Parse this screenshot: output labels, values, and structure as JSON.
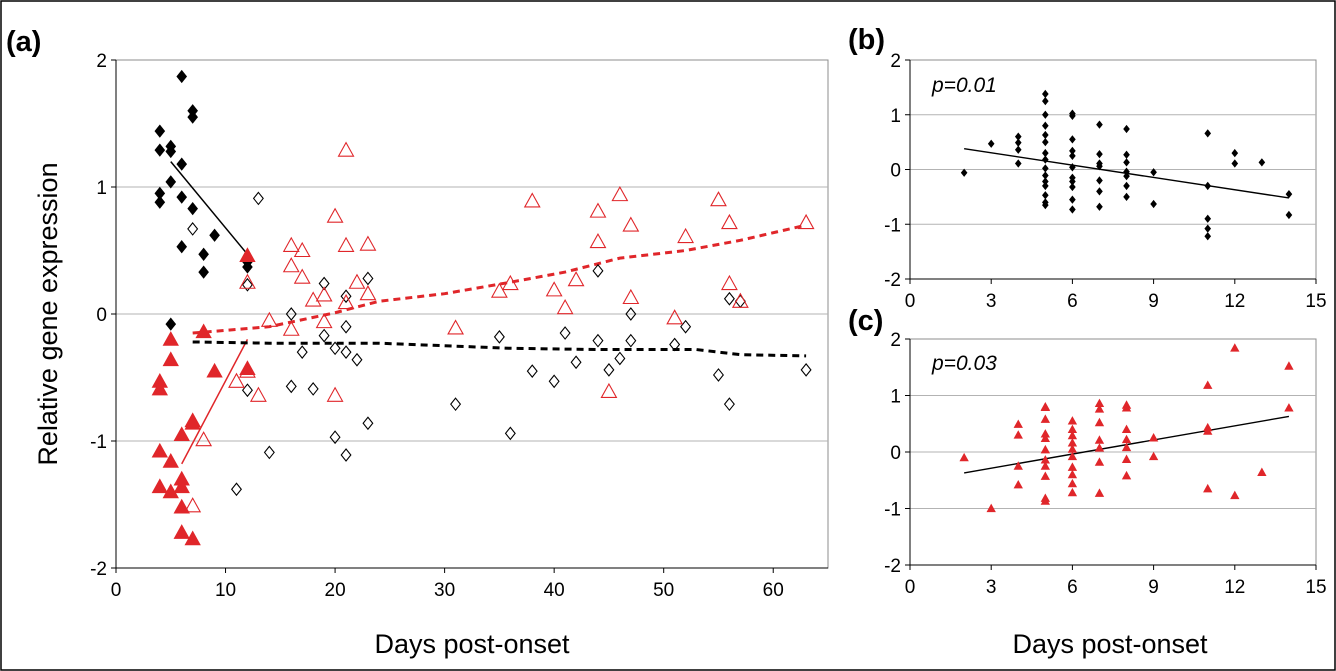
{
  "figure": {
    "border_color": "#000000",
    "grid_color": "#b3b3b3",
    "black": "#000000",
    "red": "#e0262a"
  },
  "chart_data": [
    {
      "panel": "(a)",
      "type": "scatter",
      "title": "",
      "xlabel": "Days post-onset",
      "ylabel": "Relative gene expression",
      "xlim": [
        0,
        65
      ],
      "ylim": [
        -2,
        2
      ],
      "xticks": [
        0,
        10,
        20,
        30,
        40,
        50,
        60
      ],
      "yticks": [
        -2,
        -1,
        0,
        1,
        2
      ],
      "grid": "horizontal",
      "legend": "none",
      "series": [
        {
          "marker": "diamond-filled",
          "color": "#000000",
          "points": [
            [
              4,
              1.44
            ],
            [
              4,
              1.29
            ],
            [
              4,
              0.95
            ],
            [
              4,
              0.88
            ],
            [
              5,
              1.32
            ],
            [
              5,
              1.28
            ],
            [
              5,
              1.04
            ],
            [
              6,
              1.87
            ],
            [
              6,
              1.18
            ],
            [
              6,
              0.92
            ],
            [
              6,
              0.53
            ],
            [
              7,
              1.6
            ],
            [
              7,
              1.55
            ],
            [
              7,
              0.83
            ],
            [
              8,
              0.47
            ],
            [
              8,
              0.33
            ],
            [
              9,
              0.62
            ],
            [
              12,
              0.41
            ],
            [
              12,
              0.37
            ],
            [
              5,
              -0.08
            ]
          ]
        },
        {
          "marker": "diamond-open",
          "color": "#000000",
          "points": [
            [
              7,
              0.67
            ],
            [
              11,
              -1.38
            ],
            [
              12,
              0.23
            ],
            [
              12,
              -0.6
            ],
            [
              13,
              0.91
            ],
            [
              14,
              -1.09
            ],
            [
              16,
              -0.57
            ],
            [
              16,
              0
            ],
            [
              17,
              -0.3
            ],
            [
              18,
              -0.59
            ],
            [
              19,
              0.24
            ],
            [
              19,
              -0.17
            ],
            [
              20,
              -0.27
            ],
            [
              20,
              -0.97
            ],
            [
              21,
              0.14
            ],
            [
              21,
              -0.1
            ],
            [
              21,
              -0.3
            ],
            [
              21,
              -1.11
            ],
            [
              22,
              -0.36
            ],
            [
              23,
              0.28
            ],
            [
              23,
              -0.86
            ],
            [
              31,
              -0.71
            ],
            [
              35,
              -0.18
            ],
            [
              36,
              -0.94
            ],
            [
              38,
              -0.45
            ],
            [
              40,
              -0.53
            ],
            [
              41,
              -0.15
            ],
            [
              42,
              -0.38
            ],
            [
              44,
              0.34
            ],
            [
              44,
              -0.21
            ],
            [
              45,
              -0.44
            ],
            [
              46,
              -0.35
            ],
            [
              47,
              0
            ],
            [
              47,
              -0.21
            ],
            [
              51,
              -0.24
            ],
            [
              52,
              -0.1
            ],
            [
              55,
              -0.48
            ],
            [
              56,
              0.12
            ],
            [
              56,
              -0.71
            ],
            [
              57,
              0.1
            ],
            [
              63,
              -0.44
            ]
          ]
        },
        {
          "marker": "triangle-filled",
          "color": "#e0262a",
          "points": [
            [
              4,
              -0.53
            ],
            [
              4,
              -0.59
            ],
            [
              4,
              -1.08
            ],
            [
              4,
              -1.36
            ],
            [
              5,
              -0.2
            ],
            [
              5,
              -0.36
            ],
            [
              5,
              -1.16
            ],
            [
              5,
              -1.4
            ],
            [
              6,
              -0.95
            ],
            [
              6,
              -1.3
            ],
            [
              6,
              -1.36
            ],
            [
              6,
              -1.52
            ],
            [
              6,
              -1.72
            ],
            [
              7,
              -0.84
            ],
            [
              7,
              -0.86
            ],
            [
              7,
              -1.77
            ],
            [
              8,
              -0.14
            ],
            [
              9,
              -0.45
            ],
            [
              12,
              0.46
            ],
            [
              12,
              -0.43
            ]
          ]
        },
        {
          "marker": "triangle-open",
          "color": "#e0262a",
          "points": [
            [
              7,
              -1.51
            ],
            [
              8,
              -0.99
            ],
            [
              11,
              -0.53
            ],
            [
              12,
              0.25
            ],
            [
              12,
              -0.45
            ],
            [
              13,
              -0.64
            ],
            [
              14,
              -0.05
            ],
            [
              16,
              0.54
            ],
            [
              16,
              0.38
            ],
            [
              16,
              -0.12
            ],
            [
              17,
              0.5
            ],
            [
              17,
              0.29
            ],
            [
              18,
              0.11
            ],
            [
              19,
              0.15
            ],
            [
              19,
              -0.06
            ],
            [
              20,
              0.77
            ],
            [
              20,
              -0.64
            ],
            [
              21,
              1.29
            ],
            [
              21,
              0.54
            ],
            [
              21,
              0.09
            ],
            [
              22,
              0.25
            ],
            [
              23,
              0.55
            ],
            [
              23,
              0.16
            ],
            [
              31,
              -0.11
            ],
            [
              35,
              0.18
            ],
            [
              36,
              0.24
            ],
            [
              38,
              0.89
            ],
            [
              40,
              0.19
            ],
            [
              41,
              0.05
            ],
            [
              42,
              0.27
            ],
            [
              44,
              0.81
            ],
            [
              44,
              0.57
            ],
            [
              45,
              -0.61
            ],
            [
              46,
              0.94
            ],
            [
              47,
              0.7
            ],
            [
              47,
              0.13
            ],
            [
              51,
              -0.03
            ],
            [
              52,
              0.61
            ],
            [
              55,
              0.9
            ],
            [
              56,
              0.72
            ],
            [
              56,
              0.24
            ],
            [
              57,
              0.1
            ],
            [
              63,
              0.72
            ]
          ]
        }
      ],
      "lines": [
        {
          "style": "solid",
          "color": "#000000",
          "points": [
            [
              5,
              1.2
            ],
            [
              12,
              0.47
            ]
          ]
        },
        {
          "style": "solid",
          "color": "#e0262a",
          "points": [
            [
              6,
              -1.18
            ],
            [
              12,
              -0.2
            ]
          ]
        },
        {
          "style": "dashed",
          "color": "#e0262a",
          "points": [
            [
              7,
              -0.15
            ],
            [
              14,
              -0.1
            ],
            [
              20,
              0.01
            ],
            [
              24,
              0.1
            ],
            [
              30,
              0.16
            ],
            [
              36,
              0.25
            ],
            [
              41,
              0.33
            ],
            [
              46,
              0.44
            ],
            [
              52,
              0.5
            ],
            [
              57,
              0.58
            ],
            [
              63,
              0.7
            ]
          ]
        },
        {
          "style": "dashed",
          "color": "#000000",
          "points": [
            [
              7,
              -0.22
            ],
            [
              14,
              -0.23
            ],
            [
              24,
              -0.23
            ],
            [
              36,
              -0.27
            ],
            [
              44,
              -0.28
            ],
            [
              53,
              -0.28
            ],
            [
              57,
              -0.32
            ],
            [
              63,
              -0.33
            ]
          ]
        }
      ]
    },
    {
      "panel": "(b)",
      "type": "scatter",
      "title": "",
      "annotation": "p=0.01",
      "xlim": [
        0,
        15
      ],
      "ylim": [
        -2,
        2
      ],
      "xticks": [
        0,
        3,
        6,
        9,
        12,
        15
      ],
      "yticks": [
        -2,
        -1,
        0,
        1,
        2
      ],
      "grid": "horizontal",
      "marker": "diamond-filled",
      "color": "#000000",
      "points": [
        [
          2,
          -0.06
        ],
        [
          3,
          0.47
        ],
        [
          4,
          0.6
        ],
        [
          4,
          0.49
        ],
        [
          4,
          0.36
        ],
        [
          4,
          0.11
        ],
        [
          5,
          1.38
        ],
        [
          5,
          1.25
        ],
        [
          5,
          1.0
        ],
        [
          5,
          0.8
        ],
        [
          5,
          0.63
        ],
        [
          5,
          0.5
        ],
        [
          5,
          0.3
        ],
        [
          5,
          0.18
        ],
        [
          5,
          0.02
        ],
        [
          5,
          -0.11
        ],
        [
          5,
          -0.22
        ],
        [
          5,
          -0.3
        ],
        [
          5,
          -0.47
        ],
        [
          5,
          -0.6
        ],
        [
          5,
          -0.65
        ],
        [
          6,
          1.02
        ],
        [
          6,
          0.98
        ],
        [
          6,
          0.55
        ],
        [
          6,
          0.34
        ],
        [
          6,
          0.25
        ],
        [
          6,
          0.04
        ],
        [
          6,
          -0.15
        ],
        [
          6,
          -0.22
        ],
        [
          6,
          -0.32
        ],
        [
          6,
          -0.55
        ],
        [
          6,
          -0.73
        ],
        [
          7,
          0.82
        ],
        [
          7,
          0.28
        ],
        [
          7,
          0.11
        ],
        [
          7,
          0.06
        ],
        [
          7,
          -0.2
        ],
        [
          7,
          -0.4
        ],
        [
          7,
          -0.68
        ],
        [
          8,
          0.74
        ],
        [
          8,
          0.27
        ],
        [
          8,
          0.13
        ],
        [
          8,
          -0.04
        ],
        [
          8,
          -0.12
        ],
        [
          8,
          -0.3
        ],
        [
          8,
          -0.5
        ],
        [
          9,
          -0.05
        ],
        [
          9,
          -0.63
        ],
        [
          11,
          0.66
        ],
        [
          11,
          -0.3
        ],
        [
          11,
          -0.9
        ],
        [
          11,
          -1.08
        ],
        [
          11,
          -1.22
        ],
        [
          12,
          0.3
        ],
        [
          12,
          0.11
        ],
        [
          13,
          0.13
        ],
        [
          14,
          -0.45
        ],
        [
          14,
          -0.83
        ]
      ],
      "trendline": [
        [
          2,
          0.38
        ],
        [
          14,
          -0.52
        ]
      ]
    },
    {
      "panel": "(c)",
      "type": "scatter",
      "title": "",
      "annotation": "p=0.03",
      "xlabel": "Days post-onset",
      "xlim": [
        0,
        15
      ],
      "ylim": [
        -2,
        2
      ],
      "xticks": [
        0,
        3,
        6,
        9,
        12,
        15
      ],
      "yticks": [
        -2,
        -1,
        0,
        1,
        2
      ],
      "grid": "horizontal",
      "marker": "triangle-filled",
      "color": "#e0262a",
      "points": [
        [
          2,
          -0.1
        ],
        [
          3,
          -1.0
        ],
        [
          4,
          0.49
        ],
        [
          4,
          0.3
        ],
        [
          4,
          -0.25
        ],
        [
          4,
          -0.58
        ],
        [
          5,
          0.79
        ],
        [
          5,
          0.8
        ],
        [
          5,
          0.58
        ],
        [
          5,
          0.32
        ],
        [
          5,
          0.24
        ],
        [
          5,
          0.04
        ],
        [
          5,
          -0.14
        ],
        [
          5,
          -0.25
        ],
        [
          5,
          -0.43
        ],
        [
          5,
          -0.82
        ],
        [
          5,
          -0.87
        ],
        [
          6,
          0.55
        ],
        [
          6,
          0.4
        ],
        [
          6,
          0.29
        ],
        [
          6,
          0.16
        ],
        [
          6,
          0.05
        ],
        [
          6,
          -0.08
        ],
        [
          6,
          -0.27
        ],
        [
          6,
          -0.4
        ],
        [
          6,
          -0.56
        ],
        [
          6,
          -0.72
        ],
        [
          7,
          0.86
        ],
        [
          7,
          0.76
        ],
        [
          7,
          0.52
        ],
        [
          7,
          0.21
        ],
        [
          7,
          0.07
        ],
        [
          7,
          -0.18
        ],
        [
          7,
          -0.73
        ],
        [
          8,
          0.83
        ],
        [
          8,
          0.78
        ],
        [
          8,
          0.4
        ],
        [
          8,
          0.22
        ],
        [
          8,
          0.08
        ],
        [
          8,
          -0.13
        ],
        [
          8,
          -0.42
        ],
        [
          9,
          0.25
        ],
        [
          9,
          -0.08
        ],
        [
          11,
          1.18
        ],
        [
          11,
          0.43
        ],
        [
          11,
          0.37
        ],
        [
          11,
          -0.65
        ],
        [
          12,
          1.84
        ],
        [
          12,
          -0.77
        ],
        [
          13,
          -0.36
        ],
        [
          14,
          1.52
        ],
        [
          14,
          0.78
        ]
      ],
      "trendline": [
        [
          2,
          -0.37
        ],
        [
          14,
          0.63
        ]
      ]
    }
  ]
}
